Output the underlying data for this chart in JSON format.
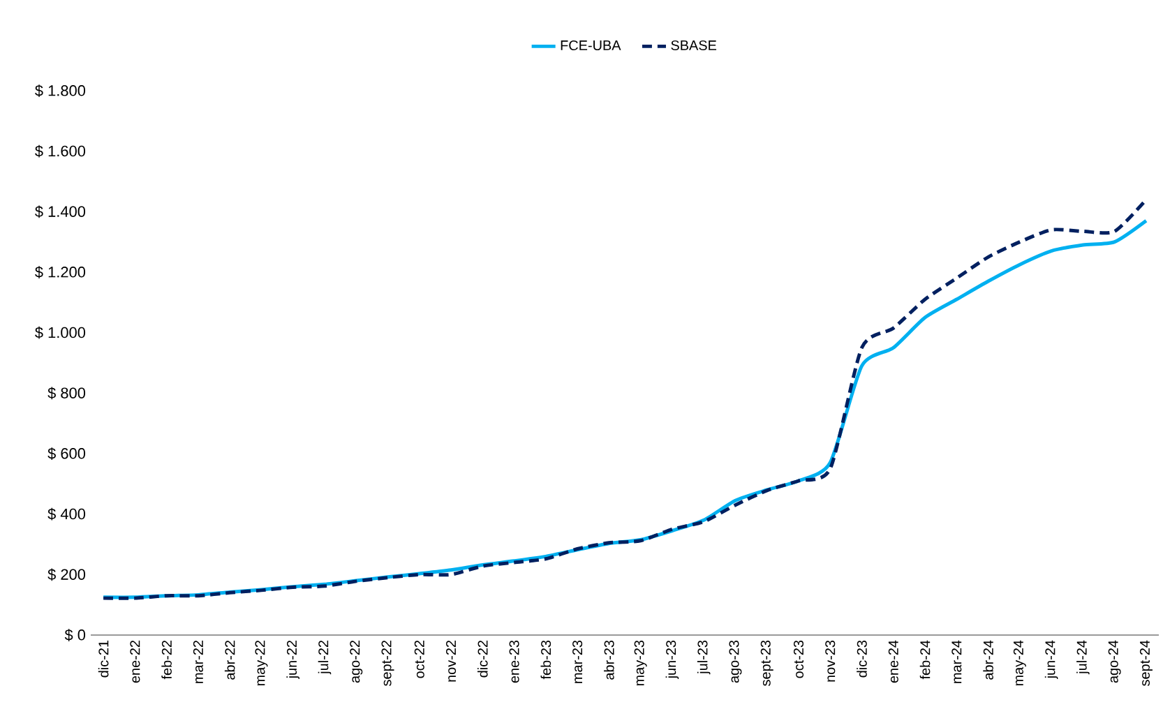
{
  "chart_data": {
    "type": "line",
    "categories": [
      "dic-21",
      "ene-22",
      "feb-22",
      "mar-22",
      "abr-22",
      "may-22",
      "jun-22",
      "jul-22",
      "ago-22",
      "sept-22",
      "oct-22",
      "nov-22",
      "dic-22",
      "ene-23",
      "feb-23",
      "mar-23",
      "abr-23",
      "may-23",
      "jun-23",
      "jul-23",
      "ago-23",
      "sept-23",
      "oct-23",
      "nov-23",
      "dic-23",
      "ene-24",
      "feb-24",
      "mar-24",
      "abr-24",
      "may-24",
      "jun-24",
      "jul-24",
      "ago-24",
      "sept-24"
    ],
    "series": [
      {
        "name": "FCE-UBA",
        "color": "#00b0f0",
        "line_style": "solid",
        "values": [
          125,
          125,
          130,
          133,
          142,
          150,
          160,
          168,
          180,
          192,
          203,
          215,
          232,
          245,
          260,
          282,
          303,
          315,
          345,
          380,
          445,
          480,
          510,
          570,
          890,
          950,
          1050,
          1110,
          1170,
          1225,
          1270,
          1290,
          1300,
          1370
        ]
      },
      {
        "name": "SBASE",
        "color": "#002060",
        "line_style": "dashed",
        "values": [
          122,
          122,
          130,
          130,
          140,
          148,
          158,
          162,
          178,
          190,
          200,
          200,
          228,
          240,
          252,
          285,
          305,
          312,
          350,
          375,
          430,
          478,
          510,
          550,
          950,
          1015,
          1110,
          1180,
          1250,
          1300,
          1340,
          1335,
          1335,
          1440
        ]
      }
    ],
    "ylim": [
      0,
      1800
    ],
    "yticks": [
      {
        "value": 0,
        "label": "$ 0"
      },
      {
        "value": 200,
        "label": "$ 200"
      },
      {
        "value": 400,
        "label": "$ 400"
      },
      {
        "value": 600,
        "label": "$ 600"
      },
      {
        "value": 800,
        "label": "$ 800"
      },
      {
        "value": 1000,
        "label": "$ 1.000"
      },
      {
        "value": 1200,
        "label": "$ 1.200"
      },
      {
        "value": 1400,
        "label": "$ 1.400"
      },
      {
        "value": 1600,
        "label": "$ 1.600"
      },
      {
        "value": 1800,
        "label": "$ 1.800"
      }
    ],
    "legend": "top",
    "marker": "none"
  }
}
